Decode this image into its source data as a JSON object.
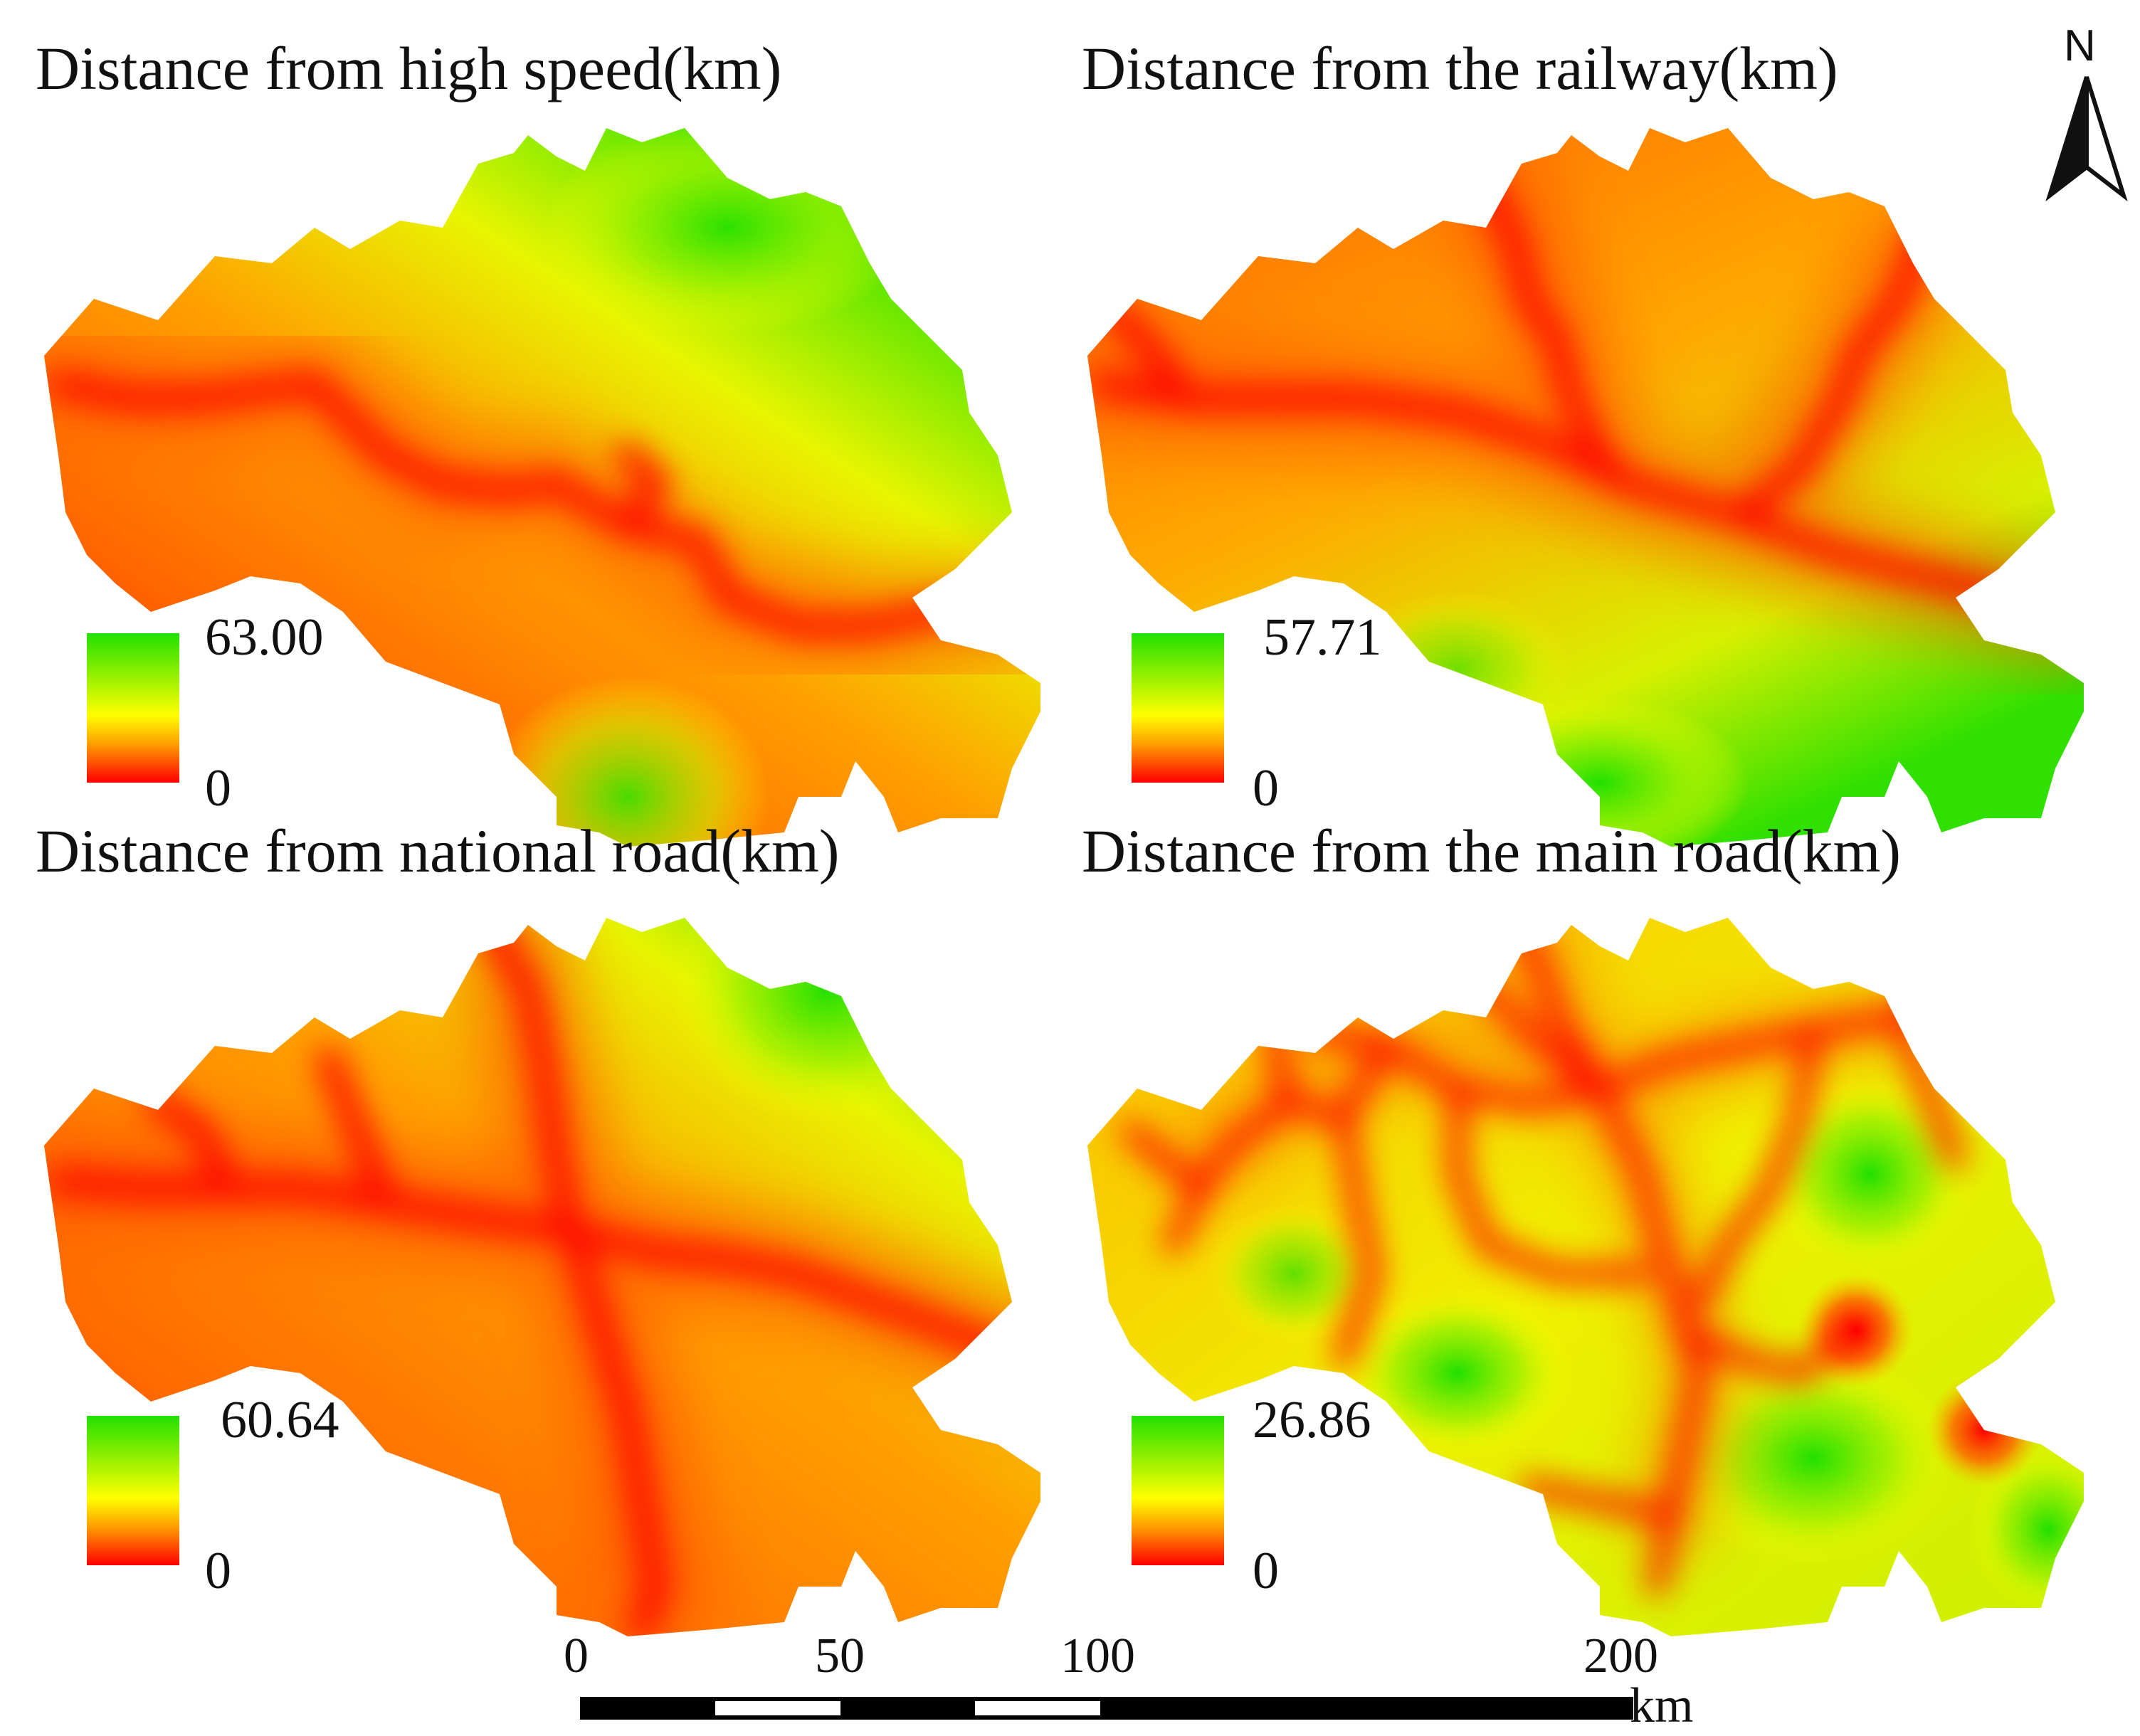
{
  "panels": [
    {
      "title": "Distance from high speed(km)",
      "legend_max": "63.00",
      "legend_min": "0"
    },
    {
      "title": "Distance from the railway(km)",
      "legend_max": "57.71",
      "legend_min": "0"
    },
    {
      "title": "Distance from national road(km)",
      "legend_max": "60.64",
      "legend_min": "0"
    },
    {
      "title": "Distance from the main road(km)",
      "legend_max": "26.86",
      "legend_min": "0"
    }
  ],
  "legend_colors": {
    "high": "#22e000",
    "mid": "#ffff00",
    "low": "#ff0000"
  },
  "north_arrow": {
    "label": "N",
    "icon": "north-arrow-icon"
  },
  "scale_bar": {
    "ticks": [
      "0",
      "50",
      "100",
      "200"
    ],
    "unit": "km"
  }
}
